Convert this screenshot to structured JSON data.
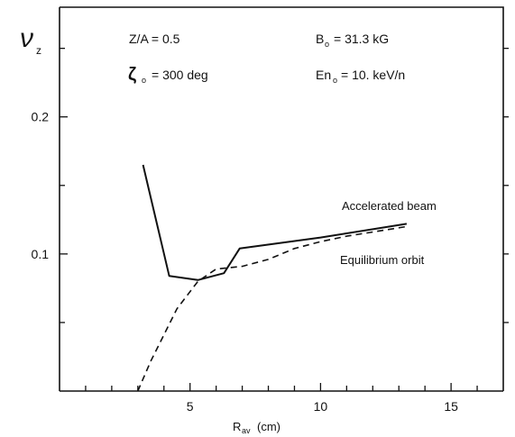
{
  "chart_data": {
    "type": "line",
    "title": "",
    "xlabel": "R",
    "xlabel_subscript": "av",
    "xlabel_unit": "(cm)",
    "ylabel": "ν",
    "ylabel_subscript": "z",
    "xlim": [
      0,
      17
    ],
    "ylim": [
      0,
      0.28
    ],
    "x_ticks": [
      5,
      10,
      15
    ],
    "x_tick_labels": [
      "5",
      "10",
      "15"
    ],
    "y_ticks": [
      0.1,
      0.2
    ],
    "y_tick_labels": [
      "0.1",
      "0.2"
    ],
    "grid": false,
    "annotations": {
      "za": "Z/A = 0.5",
      "b0_symbol": "B",
      "b0_sub": "o",
      "b0_value": "= 31.3  kG",
      "theta_symbol": "ζ",
      "theta_sub": "o",
      "theta_value": "= 300  deg",
      "en_symbol": "En",
      "en_sub": "o",
      "en_value": "= 10.  keV/n"
    },
    "series": [
      {
        "name": "Accelerated beam",
        "style": "solid",
        "x": [
          3.2,
          4.2,
          5.3,
          6.3,
          6.9,
          10.0,
          13.3
        ],
        "y": [
          0.165,
          0.084,
          0.081,
          0.086,
          0.104,
          0.112,
          0.122
        ]
      },
      {
        "name": "Equilibrium orbit",
        "style": "dashed",
        "x": [
          3.0,
          3.5,
          4.5,
          5.3,
          6.0,
          7.0,
          8.0,
          9.0,
          10.0,
          11.0,
          12.0,
          13.3
        ],
        "y": [
          0.0,
          0.022,
          0.06,
          0.08,
          0.089,
          0.091,
          0.096,
          0.104,
          0.109,
          0.113,
          0.116,
          0.12
        ]
      }
    ]
  }
}
